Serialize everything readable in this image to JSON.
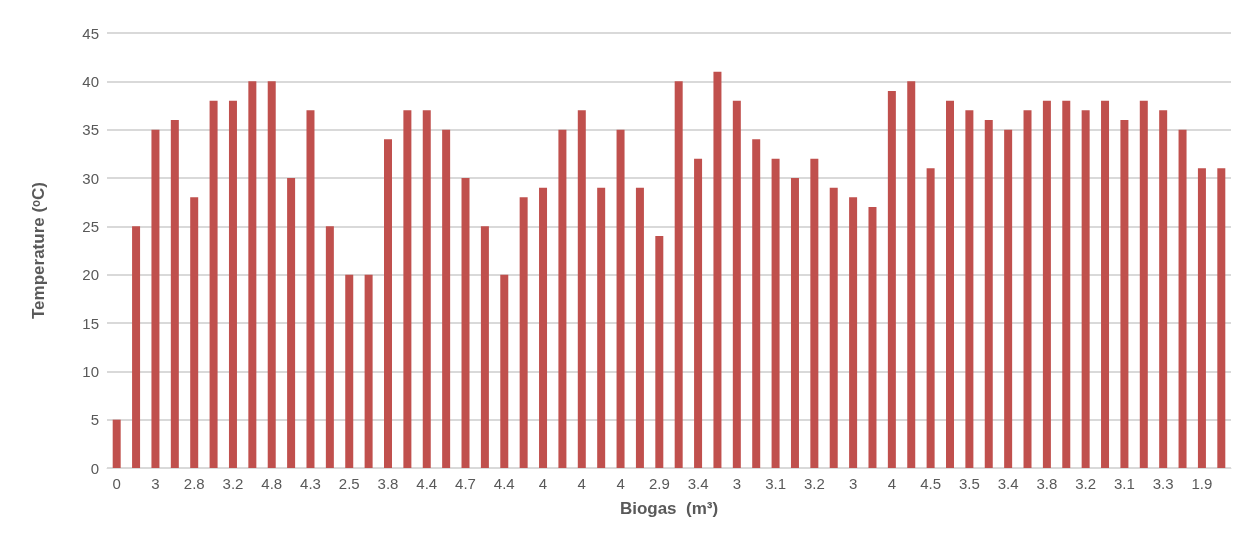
{
  "chart_data": {
    "type": "bar",
    "xlabel": "Biogas  (m³)",
    "ylabel": "Temperature (ᵒC)",
    "categories": [
      "0",
      null,
      "3",
      null,
      "2.8",
      null,
      "3.2",
      null,
      "4.8",
      null,
      "4.3",
      null,
      "2.5",
      null,
      "3.8",
      null,
      "4.4",
      null,
      "4.7",
      null,
      "4.4",
      null,
      "4",
      null,
      "4",
      null,
      "4",
      null,
      "2.9",
      null,
      "3.4",
      null,
      "3",
      null,
      "3.1",
      null,
      "3.2",
      null,
      "3",
      null,
      "4",
      null,
      "4.5",
      null,
      "3.5",
      null,
      "3.4",
      null,
      "3.8",
      null,
      "3.2",
      null,
      "3.1",
      null,
      "3.3",
      null,
      "1.9",
      null
    ],
    "values": [
      5,
      25,
      35,
      36,
      28,
      38,
      38,
      40,
      40,
      30,
      37,
      25,
      20,
      20,
      34,
      37,
      37,
      35,
      30,
      25,
      20,
      28,
      29,
      35,
      37,
      29,
      35,
      29,
      24,
      40,
      32,
      41,
      38,
      34,
      32,
      30,
      32,
      29,
      28,
      27,
      39,
      40,
      31,
      38,
      37,
      36,
      35,
      37,
      38,
      38,
      37,
      38,
      36,
      38,
      37,
      35,
      31,
      31
    ],
    "color": "#c0504d",
    "ylim": [
      0,
      45
    ],
    "yticks": [
      0,
      5,
      10,
      15,
      20,
      25,
      30,
      35,
      40,
      45
    ],
    "grid": "y"
  }
}
